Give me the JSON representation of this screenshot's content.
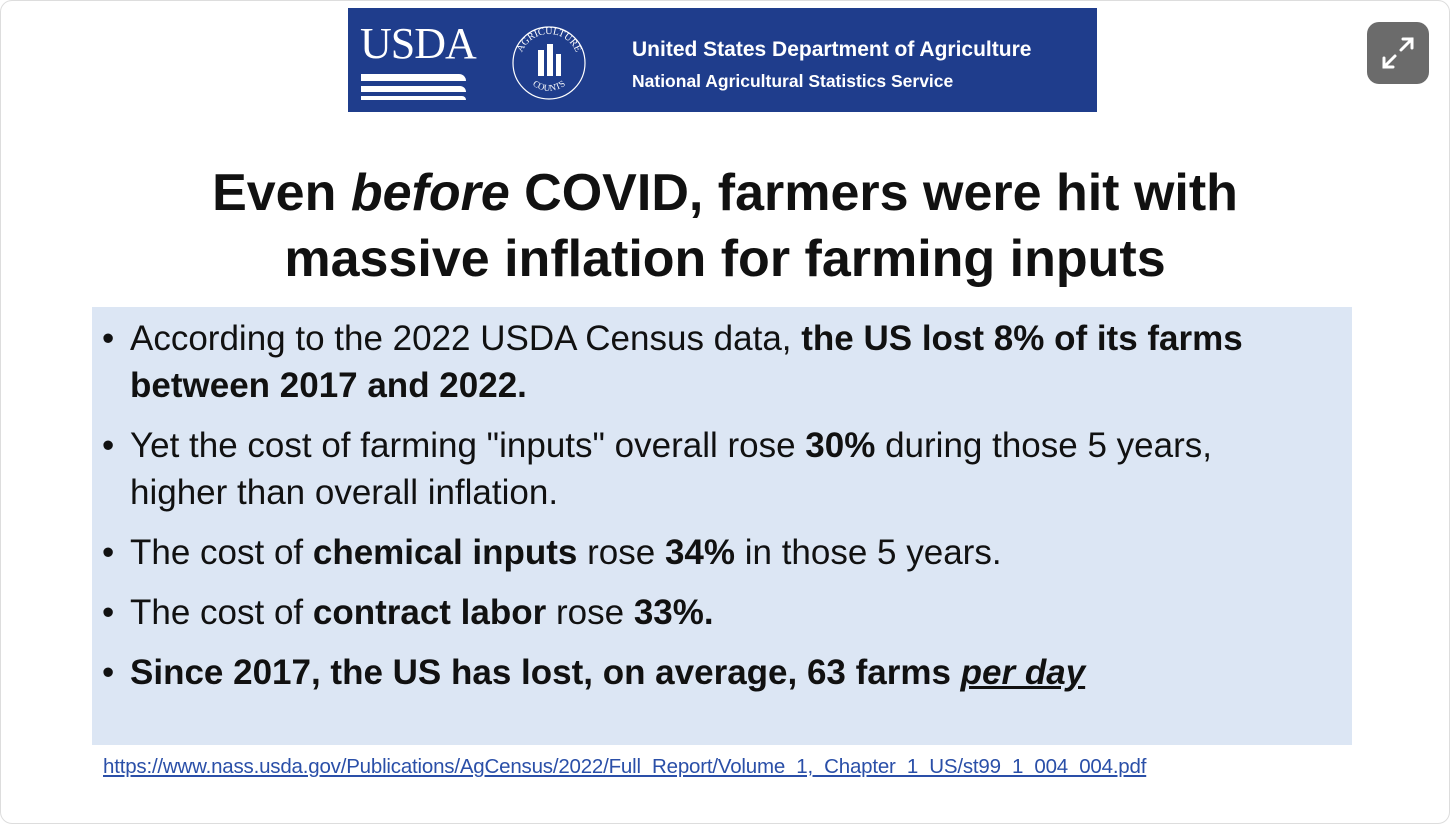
{
  "header": {
    "logo": "USDA",
    "seal_top": "AGRICULTURE",
    "seal_bottom": "COUNTS",
    "department": "United States Department of Agriculture",
    "service": "National Agricultural Statistics Service"
  },
  "title": {
    "lines": [
      [
        {
          "text": "Even "
        },
        {
          "text": "before",
          "style": "italic"
        },
        {
          "text": " COVID, farmers were hit with"
        }
      ],
      [
        {
          "text": "massive inflation for farming inputs"
        }
      ]
    ]
  },
  "bullets": [
    {
      "runs": [
        {
          "text": "According to the 2022 USDA Census data, "
        },
        {
          "text": "the US lost 8% of its farms between 2017 and 2022.",
          "style": "bold"
        }
      ]
    },
    {
      "runs": [
        {
          "text": "Yet the cost of farming \"inputs\" overall rose "
        },
        {
          "text": "30%",
          "style": "bold"
        },
        {
          "text": " during those 5 years, higher than overall inflation."
        }
      ]
    },
    {
      "runs": [
        {
          "text": "The cost of "
        },
        {
          "text": "chemical inputs",
          "style": "bold"
        },
        {
          "text": " rose "
        },
        {
          "text": "34%",
          "style": "bold"
        },
        {
          "text": " in those 5 years."
        }
      ]
    },
    {
      "runs": [
        {
          "text": "The cost of "
        },
        {
          "text": "contract labor",
          "style": "bold"
        },
        {
          "text": " rose "
        },
        {
          "text": "33%.",
          "style": "bold"
        }
      ]
    },
    {
      "runs": [
        {
          "text": "Since 2017, the US has lost, on average, 63 farms ",
          "style": "bold"
        },
        {
          "text": "per day",
          "style": "bold-italic-underline"
        }
      ]
    }
  ],
  "source_link": "https://www.nass.usda.gov/Publications/AgCensus/2022/Full_Report/Volume_1,_Chapter_1_US/st99_1_004_004.pdf"
}
